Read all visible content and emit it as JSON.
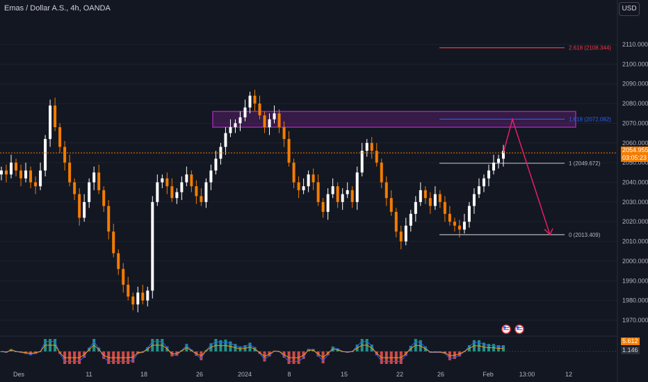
{
  "header": {
    "title": "Emas / Dollar A.S., 4h, OANDA"
  },
  "currency_button": "USD",
  "price_badge": {
    "price": "2054.955",
    "countdown": "03:05:23",
    "color": "#f57c00"
  },
  "indicator_badges": [
    {
      "value": "5.612",
      "color": "#f57c00"
    },
    {
      "value": "1.146",
      "color": "#b2b5be"
    }
  ],
  "colors": {
    "bull": "#ffffff",
    "bear": "#f57c00",
    "fib_1618": "#2962ff",
    "fib_2618": "#f23645",
    "zone": "#9c27b0",
    "arrow": "#e91e63",
    "macd": "#2962ff",
    "signal": "#ff9800"
  },
  "chart_data": {
    "type": "candlestick",
    "symbol": "Emas / Dollar A.S.",
    "timeframe": "4h",
    "source": "OANDA",
    "ylim": [
      1964,
      2122
    ],
    "y_ticks": [
      1970,
      1980,
      1990,
      2000,
      2010,
      2020,
      2030,
      2040,
      2050,
      2060,
      2070,
      2080,
      2090,
      2100,
      2110
    ],
    "x_ticks": [
      "Des",
      "11",
      "18",
      "26",
      "2024",
      "8",
      "15",
      "22",
      "26",
      "Feb",
      "13:00",
      "12"
    ],
    "last_price": 2054.955,
    "fib_levels": [
      {
        "ratio": "2.618",
        "label": "2.618 (2108.344)",
        "value": 2108.344
      },
      {
        "ratio": "1.618",
        "label": "1.618 (2072.082)",
        "value": 2072.082
      },
      {
        "ratio": "1",
        "label": "1 (2049.672)",
        "value": 2049.672
      },
      {
        "ratio": "0",
        "label": "0 (2013.409)",
        "value": 2013.409
      }
    ],
    "resistance_zone": [
      2068,
      2076
    ],
    "projection": [
      2055,
      2072,
      2013.4
    ],
    "closes": [
      2046,
      2044,
      2050,
      2046,
      2042,
      2046,
      2040,
      2038,
      2046,
      2062,
      2079,
      2068,
      2058,
      2050,
      2040,
      2034,
      2022,
      2030,
      2040,
      2045,
      2036,
      2028,
      2015,
      2004,
      1996,
      1988,
      1982,
      1978,
      1984,
      1980,
      1985,
      2030,
      2040,
      2042,
      2038,
      2032,
      2035,
      2040,
      2044,
      2038,
      2033,
      2030,
      2040,
      2046,
      2052,
      2058,
      2065,
      2068,
      2070,
      2073,
      2078,
      2084,
      2080,
      2074,
      2068,
      2072,
      2075,
      2068,
      2062,
      2050,
      2040,
      2036,
      2038,
      2044,
      2040,
      2030,
      2025,
      2034,
      2038,
      2030,
      2034,
      2036,
      2030,
      2045,
      2056,
      2060,
      2056,
      2050,
      2040,
      2032,
      2025,
      2015,
      2010,
      2018,
      2024,
      2030,
      2036,
      2032,
      2028,
      2034,
      2030,
      2024,
      2020,
      2018,
      2016,
      2020,
      2028,
      2034,
      2038,
      2042,
      2046,
      2050,
      2052,
      2056
    ]
  }
}
